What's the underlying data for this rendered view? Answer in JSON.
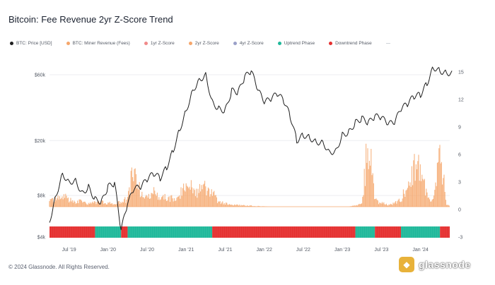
{
  "title": "Bitcoin: Fee Revenue 2yr Z-Score Trend",
  "copyright": "© 2024 Glassnode. All Rights Reserved.",
  "watermark": {
    "text": "glassnode",
    "logo_glyph": "◆"
  },
  "legend": [
    {
      "label": "BTC: Price [USD]",
      "color": "#1f1f1f"
    },
    {
      "label": "BTC: Miner Revenue (Fees)",
      "color": "#f5a66b"
    },
    {
      "label": "1yr Z-Score",
      "color": "#f08a8a"
    },
    {
      "label": "2yr Z-Score",
      "color": "#f5a66b"
    },
    {
      "label": "4yr Z-Score",
      "color": "#9aa0c8"
    },
    {
      "label": "Uptrend Phase",
      "color": "#1fb89a"
    },
    {
      "label": "Downtrend Phase",
      "color": "#e53030"
    }
  ],
  "chart_data": {
    "type": "line",
    "title": "Bitcoin: Fee Revenue 2yr Z-Score Trend",
    "x_ticks": [
      "Jul '19",
      "Jan '20",
      "Jul '20",
      "Jan '21",
      "Jul '21",
      "Jan '22",
      "Jul '22",
      "Jan '23",
      "Jul '23",
      "Jan '24"
    ],
    "y_left": {
      "scale": "log",
      "ticks": [
        "$4k",
        "$8k",
        "$20k",
        "$60k"
      ],
      "tick_values": [
        4000,
        8000,
        20000,
        60000
      ]
    },
    "y_right": {
      "ticks": [
        "-3",
        "0",
        "3",
        "6",
        "9",
        "12",
        "15"
      ],
      "tick_values": [
        -3,
        0,
        3,
        6,
        9,
        12,
        15
      ]
    },
    "series": [
      {
        "name": "BTC: Price [USD]",
        "color": "#1f1f1f",
        "axis": "left",
        "x": [
          "2019-04",
          "2019-05",
          "2019-06",
          "2019-07",
          "2019-08",
          "2019-09",
          "2019-10",
          "2019-11",
          "2019-12",
          "2020-01",
          "2020-02",
          "2020-03",
          "2020-04",
          "2020-05",
          "2020-06",
          "2020-07",
          "2020-08",
          "2020-09",
          "2020-10",
          "2020-11",
          "2020-12",
          "2021-01",
          "2021-02",
          "2021-03",
          "2021-04",
          "2021-05",
          "2021-06",
          "2021-07",
          "2021-08",
          "2021-09",
          "2021-10",
          "2021-11",
          "2021-12",
          "2022-01",
          "2022-02",
          "2022-03",
          "2022-04",
          "2022-05",
          "2022-06",
          "2022-07",
          "2022-08",
          "2022-09",
          "2022-10",
          "2022-11",
          "2022-12",
          "2023-01",
          "2023-02",
          "2023-03",
          "2023-04",
          "2023-05",
          "2023-06",
          "2023-07",
          "2023-08",
          "2023-09",
          "2023-10",
          "2023-11",
          "2023-12",
          "2024-01",
          "2024-02",
          "2024-03",
          "2024-04",
          "2024-05"
        ],
        "values": [
          5200,
          8000,
          11500,
          10000,
          10300,
          8300,
          9200,
          7500,
          7200,
          9300,
          9800,
          4500,
          7000,
          9000,
          9200,
          10500,
          11600,
          10700,
          12800,
          17000,
          24000,
          33000,
          46000,
          55000,
          60000,
          38000,
          34000,
          33000,
          46000,
          45000,
          58000,
          64000,
          47000,
          38000,
          40000,
          44000,
          39000,
          30000,
          20000,
          22000,
          21000,
          19500,
          19500,
          16500,
          16800,
          22000,
          23000,
          27000,
          29000,
          27000,
          30000,
          29500,
          26500,
          27000,
          34000,
          37000,
          42000,
          43000,
          52000,
          68000,
          64000,
          62000
        ]
      },
      {
        "name": "2yr Z-Score",
        "color": "#f5a66b",
        "axis": "right",
        "x": [
          "2019-04",
          "2019-06",
          "2019-08",
          "2019-10",
          "2019-12",
          "2020-02",
          "2020-04",
          "2020-05",
          "2020-06",
          "2020-07",
          "2020-08",
          "2020-09",
          "2020-10",
          "2020-11",
          "2020-12",
          "2021-01",
          "2021-02",
          "2021-03",
          "2021-04",
          "2021-05",
          "2021-06",
          "2021-08",
          "2021-10",
          "2021-12",
          "2022-02",
          "2022-04",
          "2022-06",
          "2022-08",
          "2022-10",
          "2022-12",
          "2023-02",
          "2023-04",
          "2023-05",
          "2023-06",
          "2023-08",
          "2023-10",
          "2023-12",
          "2024-01",
          "2024-02",
          "2024-03",
          "2024-04",
          "2024-05"
        ],
        "values": [
          0.8,
          1.6,
          0.9,
          0.6,
          0.7,
          0.5,
          1.2,
          7.0,
          1.8,
          1.2,
          2.5,
          1.8,
          1.3,
          1.6,
          2.2,
          2.8,
          3.0,
          2.5,
          3.0,
          2.4,
          0.8,
          0.3,
          0.2,
          0.1,
          0.0,
          0.0,
          -0.1,
          -0.1,
          -0.2,
          -0.2,
          0.0,
          0.4,
          11.0,
          1.0,
          0.3,
          1.0,
          6.0,
          7.0,
          2.0,
          0.8,
          10.0,
          0.3
        ]
      }
    ],
    "phase_bar": {
      "categories": [
        "Uptrend Phase",
        "Downtrend Phase"
      ],
      "segments": [
        {
          "from": "2019-04",
          "to": "2019-11",
          "phase": "Downtrend Phase"
        },
        {
          "from": "2019-11",
          "to": "2020-03",
          "phase": "Uptrend Phase"
        },
        {
          "from": "2020-03",
          "to": "2020-04",
          "phase": "Downtrend Phase"
        },
        {
          "from": "2020-04",
          "to": "2021-05",
          "phase": "Uptrend Phase"
        },
        {
          "from": "2021-05",
          "to": "2023-03",
          "phase": "Downtrend Phase"
        },
        {
          "from": "2023-03",
          "to": "2023-06",
          "phase": "Uptrend Phase"
        },
        {
          "from": "2023-06",
          "to": "2023-10",
          "phase": "Downtrend Phase"
        },
        {
          "from": "2023-10",
          "to": "2024-04",
          "phase": "Uptrend Phase"
        },
        {
          "from": "2024-04",
          "to": "2024-05",
          "phase": "Downtrend Phase"
        }
      ]
    }
  }
}
